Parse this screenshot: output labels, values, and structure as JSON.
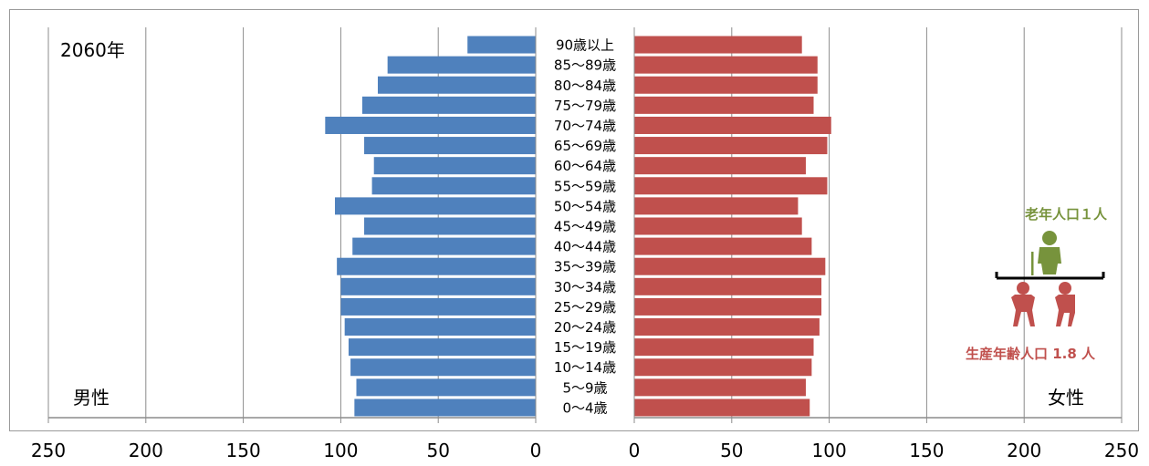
{
  "chart_data": {
    "type": "bar",
    "orientation": "horizontal",
    "layout": "population-pyramid",
    "year_label": "2060年",
    "categories": [
      "90歳以上",
      "85～89歳",
      "80～84歳",
      "75～79歳",
      "70～74歳",
      "65～69歳",
      "60～64歳",
      "55～59歳",
      "50～54歳",
      "45～49歳",
      "40～44歳",
      "35～39歳",
      "30～34歳",
      "25～29歳",
      "20～24歳",
      "15～19歳",
      "10～14歳",
      "5～9歳",
      "0～4歳"
    ],
    "series": [
      {
        "name": "男性",
        "color": "#4f81bd",
        "values": [
          35,
          76,
          81,
          89,
          108,
          88,
          83,
          84,
          103,
          88,
          94,
          102,
          100,
          100,
          98,
          96,
          95,
          92,
          93
        ]
      },
      {
        "name": "女性",
        "color": "#c0504d",
        "values": [
          86,
          94,
          94,
          92,
          101,
          99,
          88,
          99,
          84,
          86,
          91,
          98,
          96,
          96,
          95,
          92,
          91,
          88,
          90
        ]
      }
    ],
    "xlim_left": [
      250,
      0
    ],
    "xlim_right": [
      0,
      250
    ],
    "left_tick_labels": [
      "250",
      "200",
      "150",
      "100",
      "50",
      "0"
    ],
    "right_tick_labels": [
      "0",
      "50",
      "100",
      "150",
      "200",
      "250"
    ],
    "grid": true,
    "legend": "none",
    "labels": {
      "male": "男性",
      "female": "女性"
    },
    "annotation": {
      "elderly_label": "老年人口１人",
      "elderly_color": "#77933c",
      "working_label": "生産年齢人口 1.8 人",
      "working_color": "#c0504d"
    }
  }
}
